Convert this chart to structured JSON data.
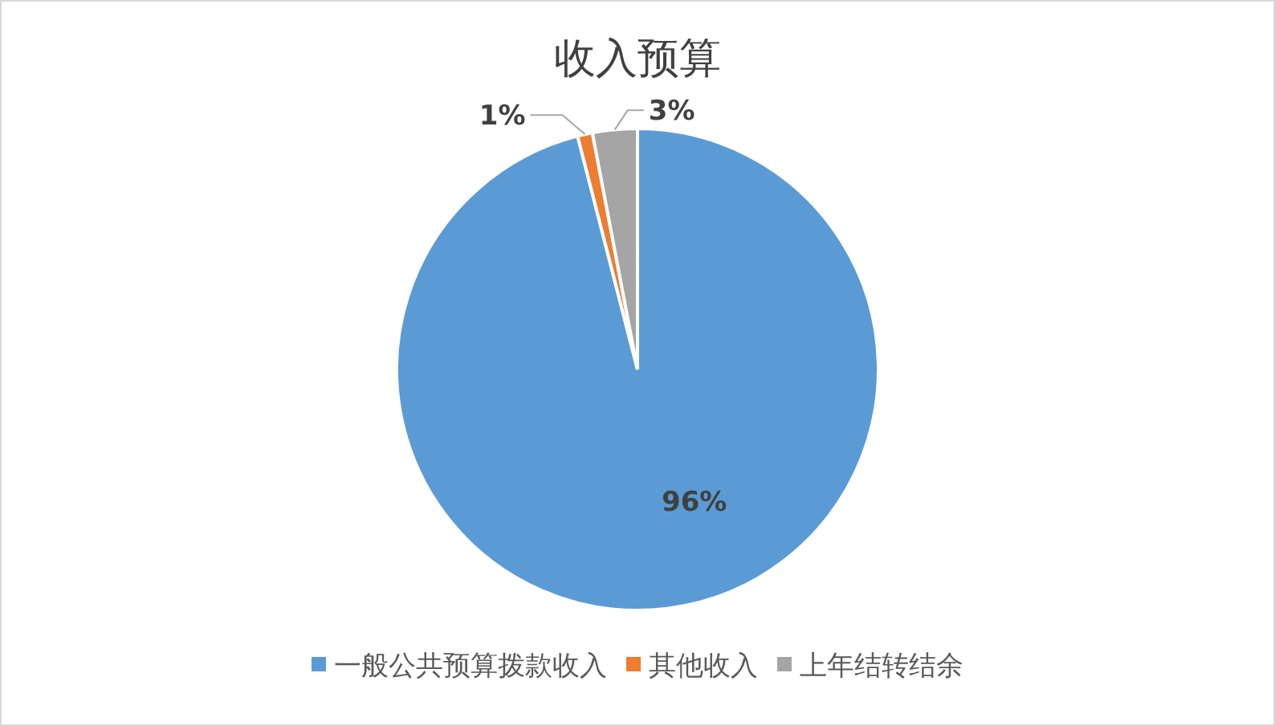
{
  "chart_data": {
    "type": "pie",
    "title": "收入预算",
    "categories": [
      "一般公共预算拨款收入",
      "其他收入",
      "上年结转结余"
    ],
    "values": [
      96,
      1,
      3
    ],
    "colors": [
      "#5b9bd5",
      "#ed7d31",
      "#a5a5a5"
    ],
    "value_labels": [
      "96%",
      "1%",
      "3%"
    ],
    "legend": "bottom"
  }
}
